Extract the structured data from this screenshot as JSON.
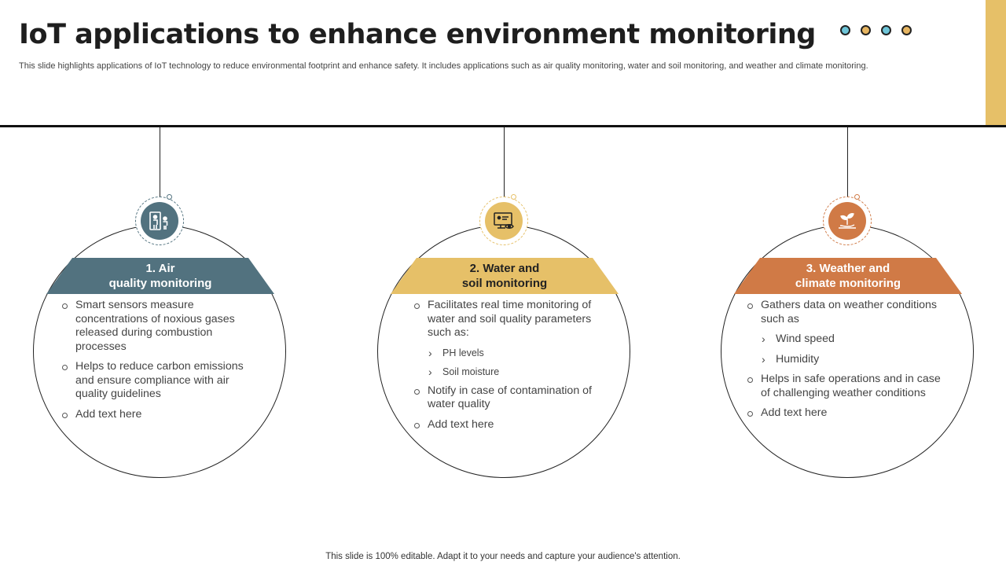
{
  "header": {
    "title": "IoT applications to enhance environment monitoring",
    "subtitle": "This slide highlights applications of IoT technology to reduce environmental footprint and enhance safety. It includes applications such as air quality monitoring, water and soil monitoring, and weather and climate monitoring."
  },
  "colors": {
    "teal": "#52727f",
    "gold": "#e6c068",
    "orange": "#d07a46",
    "dot_blue": "#6ec5d8",
    "dot_gold": "#e6b561",
    "side_bar": "#e6c068"
  },
  "cards": [
    {
      "icon": "person-scanner-icon",
      "title_line1": "1. Air",
      "title_line2": "quality monitoring",
      "items": [
        {
          "text": "Smart sensors measure concentrations of noxious gases released during combustion processes"
        },
        {
          "text": "Helps to reduce carbon emissions and ensure compliance with air quality guidelines"
        },
        {
          "text": "Add text here"
        }
      ]
    },
    {
      "icon": "monitor-eye-icon",
      "title_line1": "2. Water and",
      "title_line2": "soil monitoring",
      "items": [
        {
          "text": "Facilitates real time monitoring of water and soil quality parameters such as:"
        },
        {
          "text": "PH levels",
          "sub": true
        },
        {
          "text": "Soil moisture",
          "sub": true
        },
        {
          "text": "Notify in case of contamination of water quality"
        },
        {
          "text": "Add text here"
        }
      ]
    },
    {
      "icon": "plant-hand-icon",
      "title_line1": "3. Weather and",
      "title_line2": "climate monitoring",
      "items": [
        {
          "text": "Gathers data on weather conditions such as"
        },
        {
          "text": "Wind speed",
          "sub": true
        },
        {
          "text": "Humidity",
          "sub": true
        },
        {
          "text": "Helps in safe operations and in case of challenging weather conditions"
        },
        {
          "text": "Add text here"
        }
      ]
    }
  ],
  "footer": {
    "text": "This slide is 100% editable. Adapt it to your needs and capture your audience's attention."
  }
}
